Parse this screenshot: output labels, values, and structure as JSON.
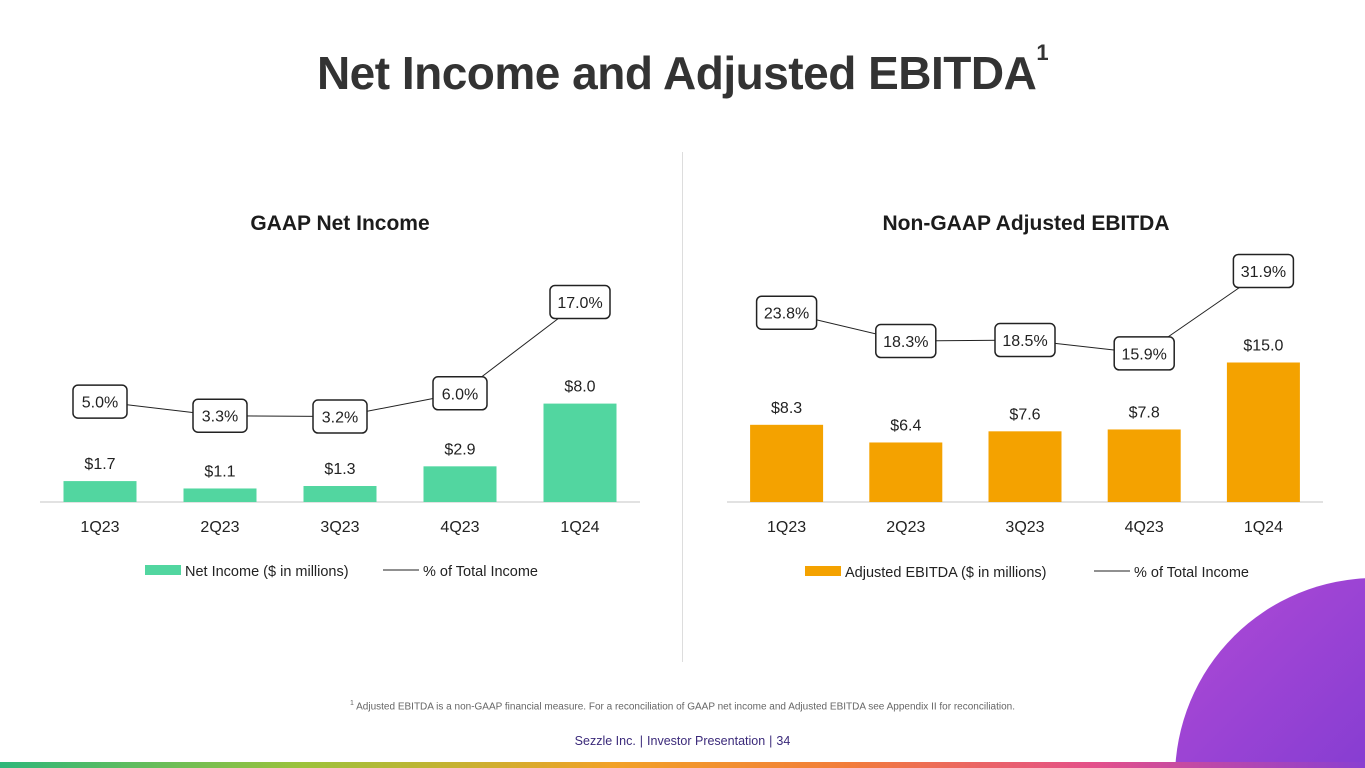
{
  "page": {
    "title": "Net Income and Adjusted EBITDA",
    "title_sup": "1",
    "footnote_sup": "1",
    "footnote": "Adjusted EBITDA is a non-GAAP financial measure. For a reconciliation of GAAP net income and Adjusted EBITDA see Appendix II for reconciliation.",
    "footer": {
      "company": "Sezzle Inc.",
      "section": "Investor Presentation",
      "page_number": "34"
    }
  },
  "colors": {
    "net_income_bar": "#52d6a0",
    "ebitda_bar": "#f4a200",
    "line": "#222222",
    "axis": "#d9d9d9"
  },
  "chart_data": [
    {
      "type": "bar",
      "title": "GAAP Net Income",
      "categories": [
        "1Q23",
        "2Q23",
        "3Q23",
        "4Q23",
        "1Q24"
      ],
      "series": [
        {
          "name": "Net Income ($ in millions)",
          "type": "bar",
          "values": [
            1.7,
            1.1,
            1.3,
            2.9,
            8.0
          ],
          "labels": [
            "$1.7",
            "$1.1",
            "$1.3",
            "$2.9",
            "$8.0"
          ]
        },
        {
          "name": "% of Total Income",
          "type": "line",
          "values": [
            5.0,
            3.3,
            3.2,
            6.0,
            17.0
          ],
          "labels": [
            "5.0%",
            "3.3%",
            "3.2%",
            "6.0%",
            "17.0%"
          ]
        }
      ],
      "legend": [
        "Net Income ($ in millions)",
        "% of Total Income"
      ],
      "legend_position": "bottom"
    },
    {
      "type": "bar",
      "title": "Non-GAAP Adjusted EBITDA",
      "categories": [
        "1Q23",
        "2Q23",
        "3Q23",
        "4Q23",
        "1Q24"
      ],
      "series": [
        {
          "name": "Adjusted EBITDA ($ in millions)",
          "type": "bar",
          "values": [
            8.3,
            6.4,
            7.6,
            7.8,
            15.0
          ],
          "labels": [
            "$8.3",
            "$6.4",
            "$7.6",
            "$7.8",
            "$15.0"
          ]
        },
        {
          "name": "% of Total Income",
          "type": "line",
          "values": [
            23.8,
            18.3,
            18.5,
            15.9,
            31.9
          ],
          "labels": [
            "23.8%",
            "18.3%",
            "18.5%",
            "15.9%",
            "31.9%"
          ]
        }
      ],
      "legend": [
        "Adjusted EBITDA ($ in millions)",
        "% of Total Income"
      ],
      "legend_position": "bottom"
    }
  ]
}
